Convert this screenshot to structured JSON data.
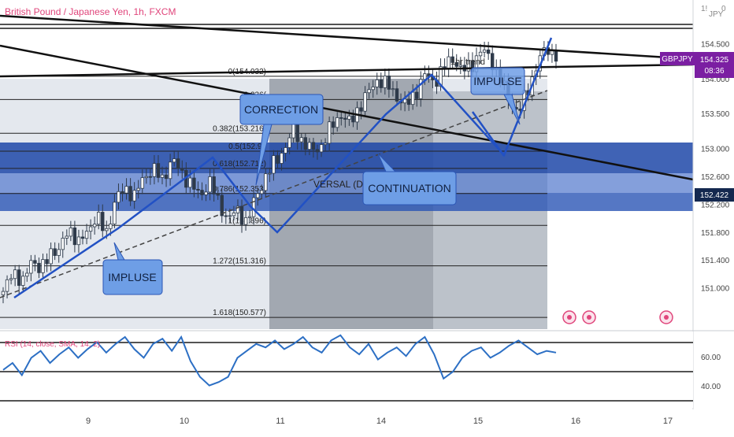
{
  "header": {
    "title": "British Pound / Japanese Yen, 1h, FXCM",
    "axis_corner_currency": "JPY",
    "axis_corner_top": "1!",
    "axis_corner_zero": "0"
  },
  "price_tags": {
    "symbol": "GBPJPY",
    "last_price": "154.325",
    "countdown": "08:36",
    "level_price": "152.422"
  },
  "colors": {
    "candle_up": "#ffffff",
    "candle_down": "#2e3a4a",
    "callout_fill": "#6e9ee6",
    "band_dark": "#1f48a8",
    "band_light": "#5b7fcf",
    "symbol_tag": "#7b1fa2",
    "title_color": "#e0457b",
    "rsi_line": "#2c6fc4",
    "shaded_box": "#6b7280"
  },
  "annotations": {
    "impluse_left": "IMPLUSE",
    "correction": "CORRECTION",
    "continuation": "CONTINUATION",
    "impulse_right": "IMPULSE",
    "trendline_label": "1hr trend",
    "reversal_label": "VERSAL (D"
  },
  "fib_levels": [
    {
      "label": "0(154.032)",
      "price": 154.032
    },
    {
      "label": "0.236(",
      "price": 153.7
    },
    {
      "label": "0.382(153.216)",
      "price": 153.216
    },
    {
      "label": "0.5(152.96",
      "price": 152.96
    },
    {
      "label": "0.618(152.712)",
      "price": 152.712
    },
    {
      "label": "0.786(152.353)",
      "price": 152.353
    },
    {
      "label": "1(151.896)",
      "price": 151.896
    },
    {
      "label": "1.272(151.316)",
      "price": 151.316
    },
    {
      "label": "1.618(150.577)",
      "price": 150.577
    }
  ],
  "rsi_indicator": {
    "label": "RSI (14, close, SMA, 14, 2)",
    "tick_60": "60.00",
    "tick_40": "40.00"
  },
  "chart_data": {
    "type": "candlestick",
    "symbol": "GBPJPY",
    "timeframe": "1h",
    "price_axis_ticks": [
      "154.500",
      "154.000",
      "153.500",
      "153.000",
      "152.600",
      "152.200",
      "151.800",
      "151.400",
      "151.000"
    ],
    "ylim": [
      150.5,
      154.9
    ],
    "date_ticks": [
      "9",
      "10",
      "11",
      "14",
      "15",
      "16",
      "17"
    ],
    "close_path": [
      150.9,
      151.3,
      151.0,
      151.45,
      151.2,
      151.55,
      151.5,
      151.9,
      151.6,
      151.85,
      152.0,
      151.8,
      152.25,
      152.45,
      152.3,
      152.6,
      152.7,
      152.55,
      152.85,
      152.65,
      152.5,
      152.3,
      152.55,
      152.2,
      152.0,
      152.1,
      151.95,
      152.3,
      152.6,
      152.8,
      153.0,
      153.25,
      153.1,
      152.95,
      153.05,
      153.3,
      153.5,
      153.35,
      153.6,
      153.8,
      154.0,
      153.9,
      153.75,
      153.6,
      153.8,
      154.05,
      153.95,
      154.15,
      154.3,
      154.1,
      154.2,
      154.4,
      154.3,
      154.0,
      153.7,
      153.5,
      153.85,
      154.2,
      154.45,
      154.325
    ],
    "rsi_path": [
      51,
      55,
      48,
      58,
      62,
      55,
      60,
      64,
      58,
      63,
      67,
      61,
      66,
      70,
      63,
      58,
      66,
      69,
      62,
      70,
      56,
      47,
      42,
      44,
      47,
      58,
      62,
      66,
      64,
      68,
      63,
      66,
      70,
      64,
      61,
      68,
      71,
      64,
      60,
      66,
      57,
      61,
      64,
      59,
      66,
      70,
      60,
      46,
      50,
      58,
      62,
      64,
      58,
      61,
      65,
      68,
      64,
      60,
      62,
      61
    ],
    "rsi_ylim": [
      30,
      70
    ]
  }
}
